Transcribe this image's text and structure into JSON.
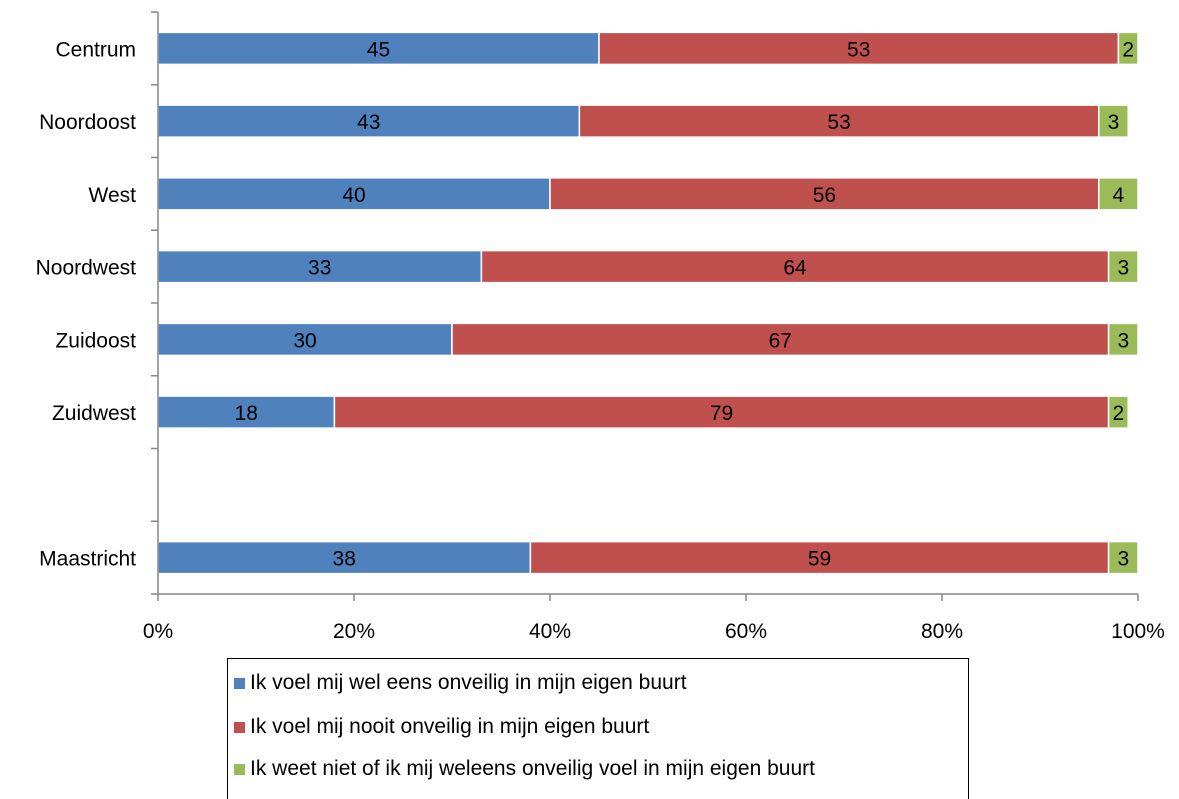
{
  "chart_data": {
    "type": "bar",
    "orientation": "horizontal",
    "stacked": true,
    "percent_scale": true,
    "categories": [
      "Centrum",
      "Noordoost",
      "West",
      "Noordwest",
      "Zuidoost",
      "Zuidwest",
      "",
      "Maastricht"
    ],
    "series": [
      {
        "name": "Ik voel mij wel eens onveilig in mijn eigen buurt",
        "color": "#4F81BD",
        "values": [
          45,
          43,
          40,
          33,
          30,
          18,
          null,
          38
        ]
      },
      {
        "name": "Ik voel mij nooit onveilig in mijn eigen buurt",
        "color": "#C0504D",
        "values": [
          53,
          53,
          56,
          64,
          67,
          79,
          null,
          59
        ]
      },
      {
        "name": "Ik weet niet of ik mij weleens onveilig voel in mijn eigen buurt",
        "color": "#9BBB59",
        "values": [
          2,
          3,
          4,
          3,
          3,
          2,
          null,
          3
        ]
      }
    ],
    "xlim": [
      0,
      100
    ],
    "x_ticks": [
      "0%",
      "20%",
      "40%",
      "60%",
      "80%",
      "100%"
    ],
    "grid": false,
    "data_labels": true,
    "legend_position": "bottom"
  }
}
